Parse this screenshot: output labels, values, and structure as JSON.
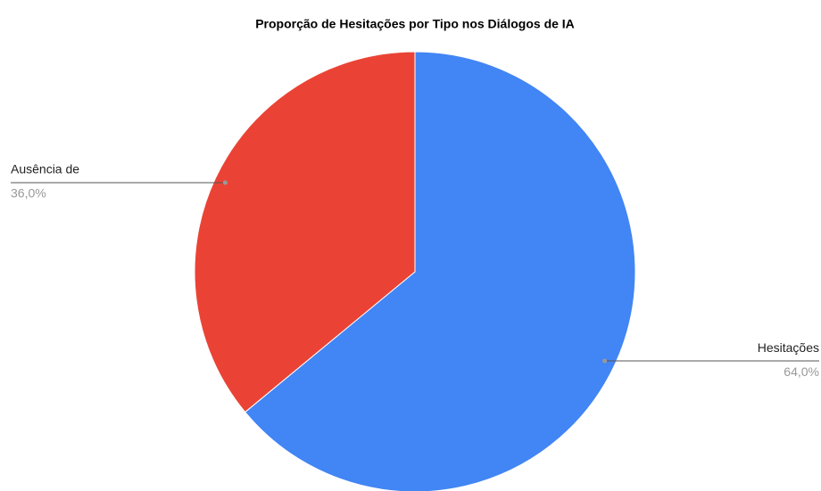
{
  "chart_data": {
    "type": "pie",
    "title": "Proporção de Hesitações por Tipo nos Diálogos de IA",
    "categories": [
      "Hesitações",
      "Ausência de"
    ],
    "values": [
      64,
      36
    ],
    "value_labels": [
      "64,0%",
      "36,0%"
    ],
    "colors": [
      "#4285f4",
      "#ea4335"
    ]
  }
}
